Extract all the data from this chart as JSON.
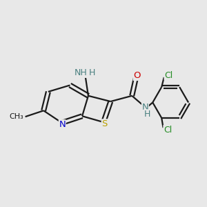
{
  "bg_color": "#e8e8e8",
  "bond_color": "#1a1a1a",
  "bond_width": 1.6,
  "N_color": "#0000cc",
  "S_color": "#b8a000",
  "NH_color": "#4a8080",
  "O_color": "#cc0000",
  "Cl_color": "#228B22",
  "figsize": [
    3.0,
    3.0
  ],
  "dpi": 100,
  "xlim": [
    0,
    10
  ],
  "ylim": [
    0,
    10
  ]
}
